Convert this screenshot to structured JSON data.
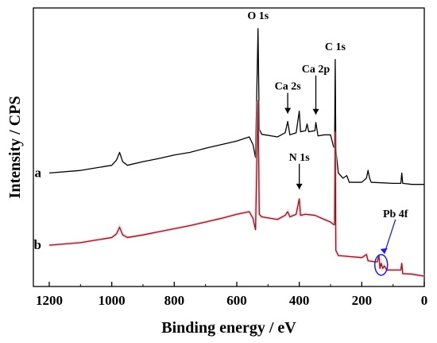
{
  "chart_data": {
    "type": "line",
    "xlabel": "Binding energy / eV",
    "ylabel": "Intensity / CPS",
    "xlim": [
      1200,
      0
    ],
    "x_reversed": true,
    "xticks": [
      1200,
      1000,
      800,
      600,
      400,
      200,
      0
    ],
    "grid": false,
    "legend": "none",
    "series": [
      {
        "name": "a",
        "color": "#000000",
        "points": [
          [
            1200,
            -10
          ],
          [
            1100,
            -5
          ],
          [
            1000,
            5
          ],
          [
            985,
            15
          ],
          [
            975,
            30
          ],
          [
            965,
            12
          ],
          [
            950,
            5
          ],
          [
            900,
            12
          ],
          [
            850,
            18
          ],
          [
            800,
            25
          ],
          [
            750,
            30
          ],
          [
            700,
            38
          ],
          [
            650,
            45
          ],
          [
            600,
            52
          ],
          [
            560,
            60
          ],
          [
            548,
            45
          ],
          [
            540,
            20
          ],
          [
            532,
            270
          ],
          [
            528,
            75
          ],
          [
            520,
            65
          ],
          [
            470,
            60
          ],
          [
            445,
            68
          ],
          [
            437,
            90
          ],
          [
            430,
            64
          ],
          [
            410,
            68
          ],
          [
            400,
            110
          ],
          [
            396,
            70
          ],
          [
            380,
            72
          ],
          [
            375,
            85
          ],
          [
            370,
            70
          ],
          [
            350,
            72
          ],
          [
            347,
            88
          ],
          [
            340,
            62
          ],
          [
            320,
            64
          ],
          [
            300,
            64
          ],
          [
            290,
            40
          ],
          [
            287,
            40
          ],
          [
            285,
            210
          ],
          [
            283,
            35
          ],
          [
            275,
            -10
          ],
          [
            260,
            -20
          ],
          [
            248,
            -15
          ],
          [
            240,
            -28
          ],
          [
            200,
            -28
          ],
          [
            185,
            -20
          ],
          [
            180,
            -5
          ],
          [
            175,
            -20
          ],
          [
            170,
            -28
          ],
          [
            100,
            -30
          ],
          [
            75,
            -30
          ],
          [
            72,
            -10
          ],
          [
            69,
            -30
          ],
          [
            40,
            -32
          ],
          [
            0,
            -32
          ]
        ],
        "peak_labels": [
          "O 1s",
          "Ca 2s",
          "Ca 2p",
          "C 1s"
        ]
      },
      {
        "name": "b",
        "color": "#8b1a10",
        "points": [
          [
            1200,
            -10
          ],
          [
            1100,
            -5
          ],
          [
            1000,
            5
          ],
          [
            985,
            12
          ],
          [
            975,
            25
          ],
          [
            965,
            10
          ],
          [
            950,
            5
          ],
          [
            900,
            10
          ],
          [
            850,
            16
          ],
          [
            800,
            22
          ],
          [
            750,
            28
          ],
          [
            700,
            35
          ],
          [
            650,
            42
          ],
          [
            600,
            50
          ],
          [
            560,
            55
          ],
          [
            548,
            42
          ],
          [
            540,
            20
          ],
          [
            532,
            270
          ],
          [
            528,
            50
          ],
          [
            520,
            45
          ],
          [
            470,
            40
          ],
          [
            445,
            48
          ],
          [
            437,
            55
          ],
          [
            430,
            45
          ],
          [
            410,
            50
          ],
          [
            400,
            80
          ],
          [
            396,
            48
          ],
          [
            380,
            50
          ],
          [
            350,
            48
          ],
          [
            320,
            40
          ],
          [
            300,
            35
          ],
          [
            290,
            30
          ],
          [
            287,
            30
          ],
          [
            285,
            210
          ],
          [
            283,
            -20
          ],
          [
            275,
            -30
          ],
          [
            240,
            -32
          ],
          [
            200,
            -34
          ],
          [
            185,
            -28
          ],
          [
            180,
            -40
          ],
          [
            160,
            -42
          ],
          [
            150,
            -42
          ],
          [
            145,
            -30
          ],
          [
            142,
            -55
          ],
          [
            138,
            -45
          ],
          [
            133,
            -55
          ],
          [
            128,
            -50
          ],
          [
            120,
            -58
          ],
          [
            100,
            -58
          ],
          [
            75,
            -58
          ],
          [
            72,
            -45
          ],
          [
            69,
            -65
          ],
          [
            40,
            -66
          ],
          [
            0,
            -70
          ]
        ],
        "peak_labels": [
          "N 1s",
          "Pb 4f"
        ]
      }
    ],
    "annotations": [
      {
        "text": "O 1s",
        "x": 532
      },
      {
        "text": "Ca 2s",
        "x": 437,
        "arrow": true
      },
      {
        "text": "Ca 2p",
        "x": 347,
        "arrow": true
      },
      {
        "text": "C 1s",
        "x": 285
      },
      {
        "text": "N 1s",
        "x": 400,
        "arrow": true
      },
      {
        "text": "Pb 4f",
        "x": 138,
        "arrow": true,
        "circled": true,
        "color": "#1a1aff"
      }
    ]
  }
}
